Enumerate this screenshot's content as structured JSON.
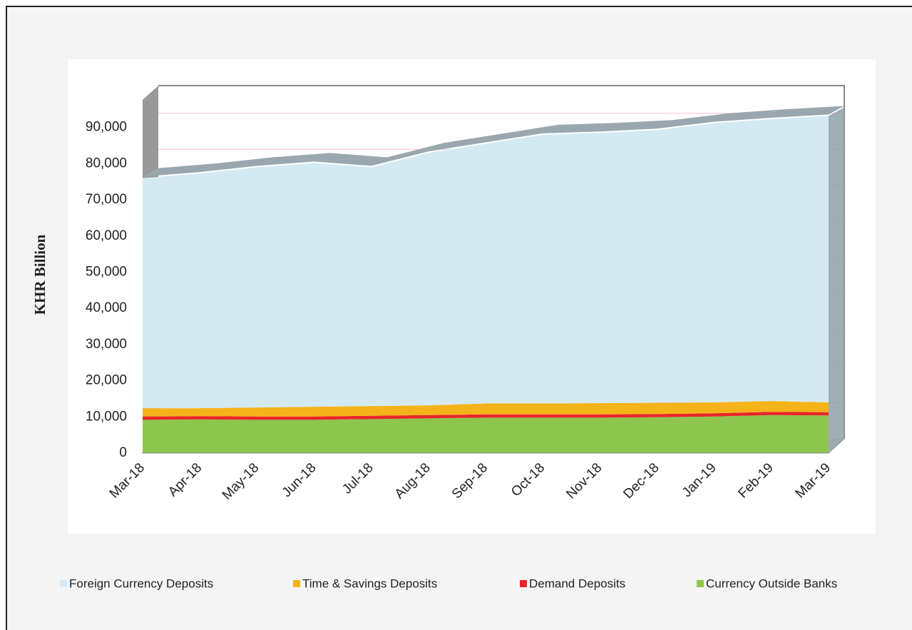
{
  "chart_data": {
    "type": "stacked_area",
    "y_label": "KHR Billion",
    "categories": [
      "Mar-18",
      "Apr-18",
      "May-18",
      "Jun-18",
      "Jul-18",
      "Aug-18",
      "Sep-18",
      "Oct-18",
      "Nov-18",
      "Dec-18",
      "Jan-19",
      "Feb-19",
      "Mar-19"
    ],
    "series": [
      {
        "name": "Foreign Currency Deposits",
        "color": "#d4eaf2",
        "values": [
          63600,
          64900,
          66400,
          67400,
          66000,
          69800,
          71800,
          74300,
          74700,
          75400,
          77200,
          77900,
          79200
        ]
      },
      {
        "name": "Time & Savings Deposits",
        "color": "#f5b31a",
        "values": [
          2300,
          2200,
          2500,
          2700,
          2700,
          2700,
          3000,
          3000,
          3100,
          3100,
          3000,
          3000,
          2700
        ]
      },
      {
        "name": "Demand Deposits",
        "color": "#e8252a",
        "values": [
          900,
          900,
          900,
          900,
          900,
          900,
          900,
          900,
          900,
          900,
          900,
          900,
          900
        ]
      },
      {
        "name": "Currency Outside Banks",
        "color": "#8dc54f",
        "values": [
          9200,
          9300,
          9200,
          9200,
          9400,
          9600,
          9800,
          9800,
          9800,
          9900,
          10100,
          10500,
          10400
        ]
      }
    ],
    "ylim": [
      0,
      100000
    ],
    "yticks": [
      0,
      {
        "value": 10000,
        "label": "10,000"
      },
      {
        "value": 20000,
        "label": "20,000"
      },
      {
        "value": 30000,
        "label": "30,000"
      },
      {
        "value": 40000,
        "label": "40,000"
      },
      {
        "value": 50000,
        "label": "50,000"
      },
      {
        "value": 60000,
        "label": "60,000"
      },
      {
        "value": 70000,
        "label": "70,000"
      },
      {
        "value": 80000,
        "label": "80,000"
      },
      {
        "value": 90000,
        "label": "90,000"
      }
    ],
    "grid": true,
    "legend": "bottom"
  }
}
